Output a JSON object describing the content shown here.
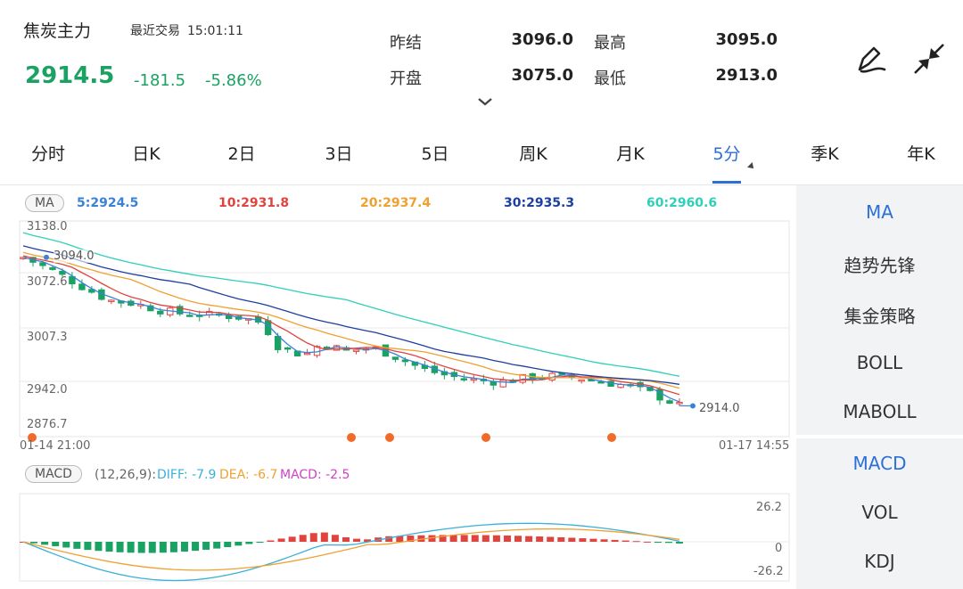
{
  "header": {
    "name": "焦炭主力",
    "last_trade_label": "最近交易",
    "last_trade_time": "15:01:11",
    "price": "2914.5",
    "change": "-181.5",
    "change_pct": "-5.86%",
    "stats": {
      "prev_settle_label": "昨结",
      "prev_settle": "3096.0",
      "high_label": "最高",
      "high": "3095.0",
      "open_label": "开盘",
      "open": "3075.0",
      "low_label": "最低",
      "low": "2913.0"
    }
  },
  "tabs": [
    {
      "label": "分时"
    },
    {
      "label": "日K"
    },
    {
      "label": "2日"
    },
    {
      "label": "3日"
    },
    {
      "label": "5日"
    },
    {
      "label": "周K"
    },
    {
      "label": "月K"
    },
    {
      "label": "5分"
    },
    {
      "label": "季K"
    },
    {
      "label": "年K"
    }
  ],
  "active_tab": "5分",
  "chart_data": {
    "type": "candlestick",
    "ma_badge": "MA",
    "ma": [
      {
        "label": "5:2924.5",
        "color": "#3b82d6"
      },
      {
        "label": "10:2931.8",
        "color": "#e0443e"
      },
      {
        "label": "20:2937.4",
        "color": "#f0a030"
      },
      {
        "label": "30:2935.3",
        "color": "#1e3fa0"
      },
      {
        "label": "60:2960.6",
        "color": "#2ed0b8"
      }
    ],
    "y_ticks": [
      "3138.0",
      "3072.6",
      "3007.3",
      "2942.0",
      "2876.7"
    ],
    "ylim": [
      2876.7,
      3138.0
    ],
    "high_marker": "3094.0",
    "last_marker": "2914.0",
    "x_start": "01-14 21:00",
    "x_end": "01-17 14:55",
    "up_color": "#e0443e",
    "down_color": "#1aa263",
    "macd_badge": "MACD",
    "macd_params": "(12,26,9):",
    "diff_label": "DIFF: -7.9",
    "dea_label": "DEA: -6.7",
    "macd_label": "MACD: -2.5",
    "macd_y_ticks": [
      "26.2",
      "0",
      "-26.2"
    ]
  },
  "indicators_main": [
    {
      "label": "MA"
    },
    {
      "label": "趋势先锋"
    },
    {
      "label": "集金策略"
    },
    {
      "label": "BOLL"
    },
    {
      "label": "MABOLL"
    }
  ],
  "indicators_sub": [
    {
      "label": "MACD"
    },
    {
      "label": "VOL"
    },
    {
      "label": "KDJ"
    }
  ]
}
